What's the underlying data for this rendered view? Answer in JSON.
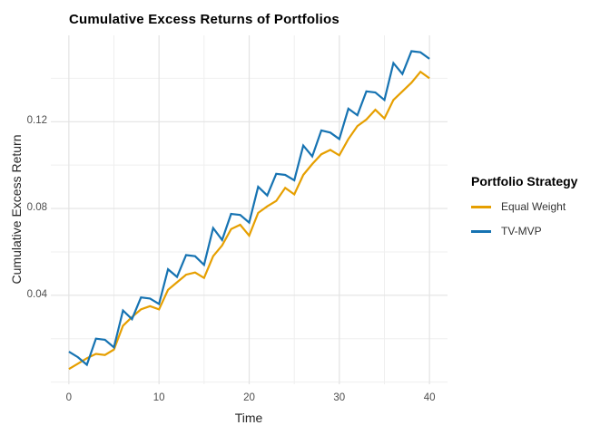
{
  "figure": {
    "title": "Cumulative Excess Returns of Portfolios"
  },
  "chart_data": {
    "type": "line",
    "title": "Cumulative Excess Returns of Portfolios",
    "xlabel": "Time",
    "ylabel": "Cumulative Excess Return",
    "legend_title": "Portfolio Strategy",
    "legend_position": "right",
    "grid": "major+minor",
    "background": "#ffffff",
    "grid_color_major": "#e3e3e3",
    "grid_color_minor": "#efefef",
    "tick_text_color": "#4d4d4d",
    "xlim": [
      -2,
      42
    ],
    "ylim": [
      -0.001,
      0.1598
    ],
    "x_ticks": {
      "values": [
        0,
        10,
        20,
        30,
        40
      ],
      "labels": [
        "0",
        "10",
        "20",
        "30",
        "40"
      ]
    },
    "y_ticks": {
      "values": [
        0.04,
        0.08,
        0.12
      ],
      "labels": [
        "0.04",
        "0.08",
        "0.12"
      ]
    },
    "x_minor_ticks": [
      5,
      15,
      25,
      35
    ],
    "y_minor_ticks": [
      0.0,
      0.02,
      0.06,
      0.1,
      0.14
    ],
    "x": [
      0,
      1,
      2,
      3,
      4,
      5,
      6,
      7,
      8,
      9,
      10,
      11,
      12,
      13,
      14,
      15,
      16,
      17,
      18,
      19,
      20,
      21,
      22,
      23,
      24,
      25,
      26,
      27,
      28,
      29,
      30,
      31,
      32,
      33,
      34,
      35,
      36,
      37,
      38,
      39,
      40
    ],
    "series": [
      {
        "name": "Equal Weight",
        "color": "#E69F00",
        "values": [
          0.006,
          0.0085,
          0.011,
          0.013,
          0.0125,
          0.015,
          0.026,
          0.03,
          0.0335,
          0.035,
          0.0335,
          0.0425,
          0.046,
          0.0495,
          0.0505,
          0.048,
          0.058,
          0.063,
          0.0705,
          0.0725,
          0.0675,
          0.078,
          0.081,
          0.0835,
          0.0895,
          0.0865,
          0.0955,
          0.1005,
          0.105,
          0.107,
          0.1045,
          0.112,
          0.118,
          0.121,
          0.1255,
          0.1215,
          0.13,
          0.134,
          0.138,
          0.143,
          0.14
        ]
      },
      {
        "name": "TV-MVP",
        "color": "#1673B2",
        "values": [
          0.014,
          0.0115,
          0.008,
          0.02,
          0.0195,
          0.016,
          0.033,
          0.029,
          0.039,
          0.0385,
          0.036,
          0.052,
          0.0485,
          0.0585,
          0.058,
          0.054,
          0.071,
          0.0655,
          0.0775,
          0.077,
          0.0735,
          0.09,
          0.086,
          0.096,
          0.0955,
          0.093,
          0.109,
          0.104,
          0.116,
          0.115,
          0.112,
          0.126,
          0.123,
          0.134,
          0.1335,
          0.13,
          0.147,
          0.142,
          0.1525,
          0.152,
          0.149
        ]
      }
    ]
  }
}
